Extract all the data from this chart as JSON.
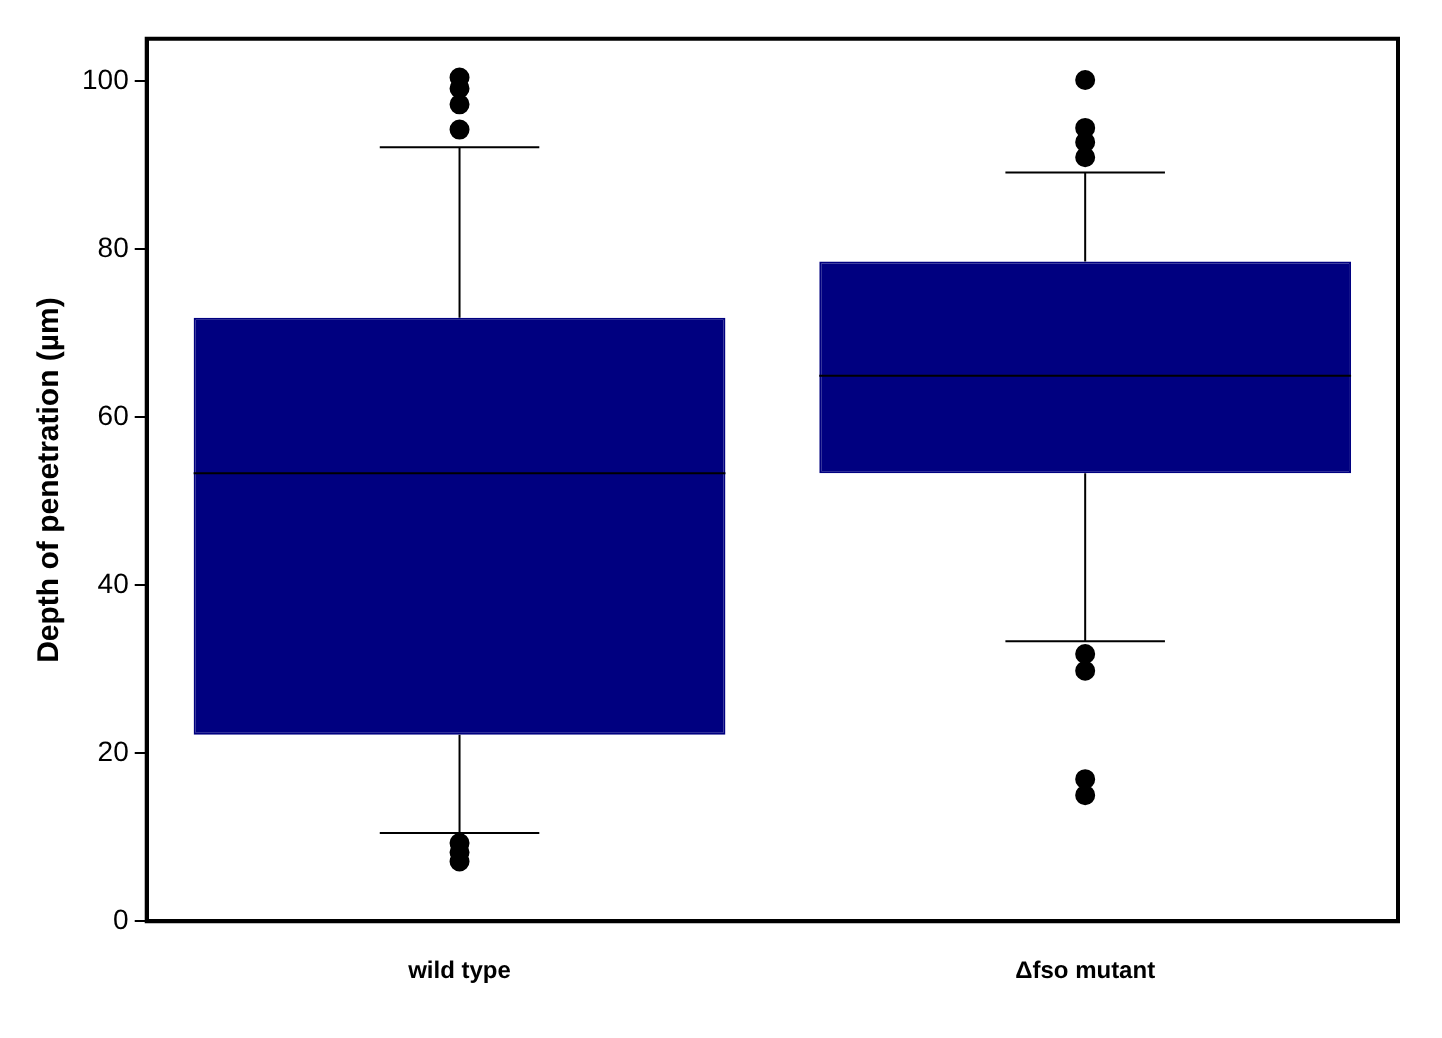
{
  "chart_data": {
    "type": "box",
    "ylabel": "Depth of penetration (µm)",
    "categories": [
      "wild type",
      "Δfso mutant"
    ],
    "color": "#000080",
    "ylim": [
      0,
      105
    ],
    "yticks": [
      0,
      20,
      40,
      60,
      80,
      100
    ],
    "grid": false,
    "legend": false,
    "marker": "circle",
    "boxes": [
      {
        "low": 10.5,
        "q1": 22.2,
        "median": 53.3,
        "q3": 71.8,
        "high": 92.1,
        "outliers": [
          100.4,
          99.1,
          97.2,
          94.2,
          9.3,
          8.2,
          7.1
        ]
      },
      {
        "low": 33.3,
        "q1": 53.3,
        "median": 64.9,
        "q3": 78.5,
        "high": 89.1,
        "outliers": [
          100.1,
          94.4,
          92.7,
          90.9,
          31.8,
          29.8,
          16.9,
          15.0
        ]
      }
    ]
  }
}
